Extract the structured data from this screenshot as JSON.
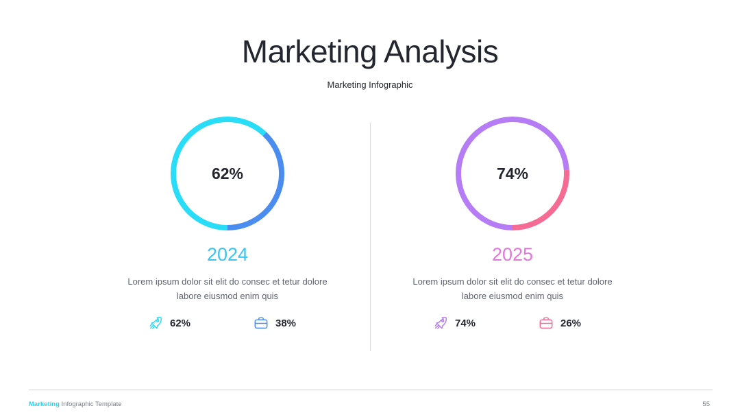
{
  "title": "Marketing Analysis",
  "subtitle": "Marketing Infographic",
  "colors": {
    "cyan": "#29dcf7",
    "blue": "#4a8cf0",
    "purple": "#b57cf5",
    "pink": "#f56b93",
    "year_2024": "#3cc4ee",
    "year_2025": "#e07ad8"
  },
  "chart_data": [
    {
      "type": "pie",
      "center_label": "62%",
      "year": "2024",
      "description": "Lorem ipsum dolor sit elit do consec et tetur dolore labore eiusmod enim quis",
      "slices": [
        {
          "value": 62,
          "color": "#29dcf7"
        },
        {
          "value": 38,
          "color": "#4a8cf0"
        }
      ],
      "stats": [
        {
          "icon": "rocket-icon",
          "value": "62%",
          "color": "#29dcf7"
        },
        {
          "icon": "briefcase-icon",
          "value": "38%",
          "color": "#4a8cf0"
        }
      ]
    },
    {
      "type": "pie",
      "center_label": "74%",
      "year": "2025",
      "description": "Lorem ipsum dolor sit elit do consec et tetur dolore labore eiusmod enim quis",
      "slices": [
        {
          "value": 74,
          "color": "#b57cf5"
        },
        {
          "value": 26,
          "color": "#f56b93"
        }
      ],
      "stats": [
        {
          "icon": "rocket-icon",
          "value": "74%",
          "color": "#b57cf5"
        },
        {
          "icon": "briefcase-icon",
          "value": "26%",
          "color": "#f56b93"
        }
      ]
    }
  ],
  "footer": {
    "brand": "Marketing",
    "text": "Infographic Template",
    "page": "55"
  }
}
